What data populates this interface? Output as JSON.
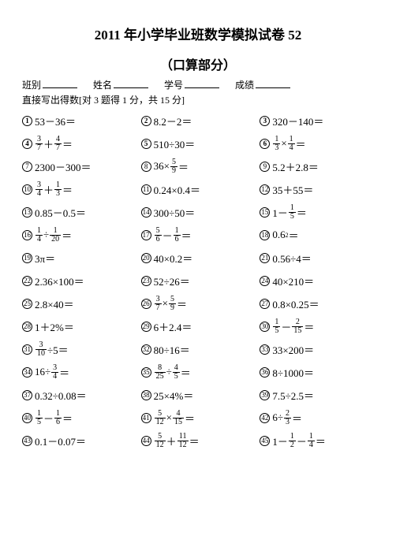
{
  "title": "2011 年小学毕业班数学模拟试卷 52",
  "subtitle": "（口算部分）",
  "header": {
    "class_label": "班别",
    "name_label": "姓名",
    "id_label": "学号",
    "score_label": "成绩"
  },
  "instruction": "直接写出得数[对 3 题得 1 分，共 15 分]",
  "problems": [
    {
      "n": "1",
      "t": "plain",
      "v": "53－36＝",
      "thick": true
    },
    {
      "n": "2",
      "t": "plain",
      "v": "8.2－2＝",
      "thick": true
    },
    {
      "n": "3",
      "t": "plain",
      "v": "320－140＝",
      "thick": true
    },
    {
      "n": "4",
      "t": "frac",
      "parts": [
        {
          "f": [
            "3",
            "7"
          ]
        },
        "＋",
        {
          "f": [
            "4",
            "7"
          ]
        },
        "＝"
      ],
      "thick": true
    },
    {
      "n": "5",
      "t": "plain",
      "v": "510÷30＝",
      "thick": true
    },
    {
      "n": "6",
      "t": "frac",
      "parts": [
        {
          "f": [
            "1",
            "3"
          ]
        },
        "×",
        {
          "f": [
            "1",
            "4"
          ]
        },
        "＝"
      ],
      "thick": true
    },
    {
      "n": "7",
      "t": "plain",
      "v": "2300－300＝"
    },
    {
      "n": "8",
      "t": "frac",
      "parts": [
        "36×",
        {
          "f": [
            "5",
            "9"
          ]
        },
        "＝"
      ]
    },
    {
      "n": "9",
      "t": "plain",
      "v": "5.2＋2.8＝"
    },
    {
      "n": "10",
      "t": "frac",
      "parts": [
        {
          "f": [
            "3",
            "4"
          ]
        },
        "＋",
        {
          "f": [
            "1",
            "3"
          ]
        },
        "＝"
      ]
    },
    {
      "n": "11",
      "t": "plain",
      "v": "0.24×0.4＝"
    },
    {
      "n": "12",
      "t": "plain",
      "v": "35＋55＝"
    },
    {
      "n": "13",
      "t": "plain",
      "v": "0.85－0.5＝"
    },
    {
      "n": "14",
      "t": "plain",
      "v": "300÷50＝"
    },
    {
      "n": "15",
      "t": "frac",
      "parts": [
        "1－",
        {
          "f": [
            "1",
            "5"
          ]
        },
        "＝"
      ]
    },
    {
      "n": "16",
      "t": "frac",
      "parts": [
        {
          "f": [
            "1",
            "4"
          ]
        },
        "÷",
        {
          "f": [
            "1",
            "20"
          ]
        },
        "＝"
      ]
    },
    {
      "n": "17",
      "t": "frac",
      "parts": [
        {
          "f": [
            "5",
            "6"
          ]
        },
        "－",
        {
          "f": [
            "1",
            "6"
          ]
        },
        "＝"
      ]
    },
    {
      "n": "18",
      "t": "sup",
      "pre": "0.6",
      "sup": "2",
      "post": "＝"
    },
    {
      "n": "19",
      "t": "plain",
      "v": "3π＝"
    },
    {
      "n": "20",
      "t": "plain",
      "v": "40×0.2＝"
    },
    {
      "n": "21",
      "t": "plain",
      "v": "0.56÷4＝"
    },
    {
      "n": "22",
      "t": "plain",
      "v": "2.36×100＝"
    },
    {
      "n": "23",
      "t": "plain",
      "v": "52÷26＝"
    },
    {
      "n": "24",
      "t": "plain",
      "v": "40×210＝"
    },
    {
      "n": "25",
      "t": "plain",
      "v": "2.8×40＝"
    },
    {
      "n": "26",
      "t": "frac",
      "parts": [
        {
          "f": [
            "3",
            "7"
          ]
        },
        "×",
        {
          "f": [
            "5",
            "9"
          ]
        },
        "＝"
      ]
    },
    {
      "n": "27",
      "t": "plain",
      "v": "0.8×0.25＝"
    },
    {
      "n": "28",
      "t": "plain",
      "v": "1＋2%＝"
    },
    {
      "n": "29",
      "t": "plain",
      "v": "6＋2.4＝"
    },
    {
      "n": "30",
      "t": "frac",
      "parts": [
        {
          "f": [
            "1",
            "5"
          ]
        },
        "－",
        {
          "f": [
            "2",
            "15"
          ]
        },
        "＝"
      ]
    },
    {
      "n": "31",
      "t": "frac",
      "parts": [
        {
          "f": [
            "3",
            "10"
          ]
        },
        "÷5＝"
      ]
    },
    {
      "n": "32",
      "t": "plain",
      "v": "80÷16＝"
    },
    {
      "n": "33",
      "t": "plain",
      "v": "33×200＝"
    },
    {
      "n": "34",
      "t": "frac",
      "parts": [
        "16÷",
        {
          "f": [
            "3",
            "4"
          ]
        },
        "＝"
      ]
    },
    {
      "n": "35",
      "t": "frac",
      "parts": [
        {
          "f": [
            "8",
            "25"
          ]
        },
        "÷",
        {
          "f": [
            "4",
            "5"
          ]
        },
        "＝"
      ]
    },
    {
      "n": "36",
      "t": "plain",
      "v": "8÷1000＝"
    },
    {
      "n": "37",
      "t": "plain",
      "v": "0.32÷0.08＝"
    },
    {
      "n": "38",
      "t": "plain",
      "v": "25×4%＝"
    },
    {
      "n": "39",
      "t": "plain",
      "v": "7.5÷2.5＝"
    },
    {
      "n": "40",
      "t": "frac",
      "parts": [
        {
          "f": [
            "1",
            "5"
          ]
        },
        "－",
        {
          "f": [
            "1",
            "6"
          ]
        },
        "＝"
      ]
    },
    {
      "n": "41",
      "t": "frac",
      "parts": [
        {
          "f": [
            "5",
            "12"
          ]
        },
        "×",
        {
          "f": [
            "4",
            "15"
          ]
        },
        "＝"
      ]
    },
    {
      "n": "42",
      "t": "frac",
      "parts": [
        "6÷",
        {
          "f": [
            "2",
            "3"
          ]
        },
        "＝"
      ]
    },
    {
      "n": "43",
      "t": "plain",
      "v": "0.1－0.07＝"
    },
    {
      "n": "44",
      "t": "frac",
      "parts": [
        {
          "f": [
            "5",
            "12"
          ]
        },
        "＋",
        {
          "f": [
            "11",
            "12"
          ]
        },
        "＝"
      ]
    },
    {
      "n": "45",
      "t": "frac",
      "parts": [
        "1－",
        {
          "f": [
            "1",
            "2"
          ]
        },
        "－",
        {
          "f": [
            "1",
            "4"
          ]
        },
        "＝"
      ]
    }
  ]
}
